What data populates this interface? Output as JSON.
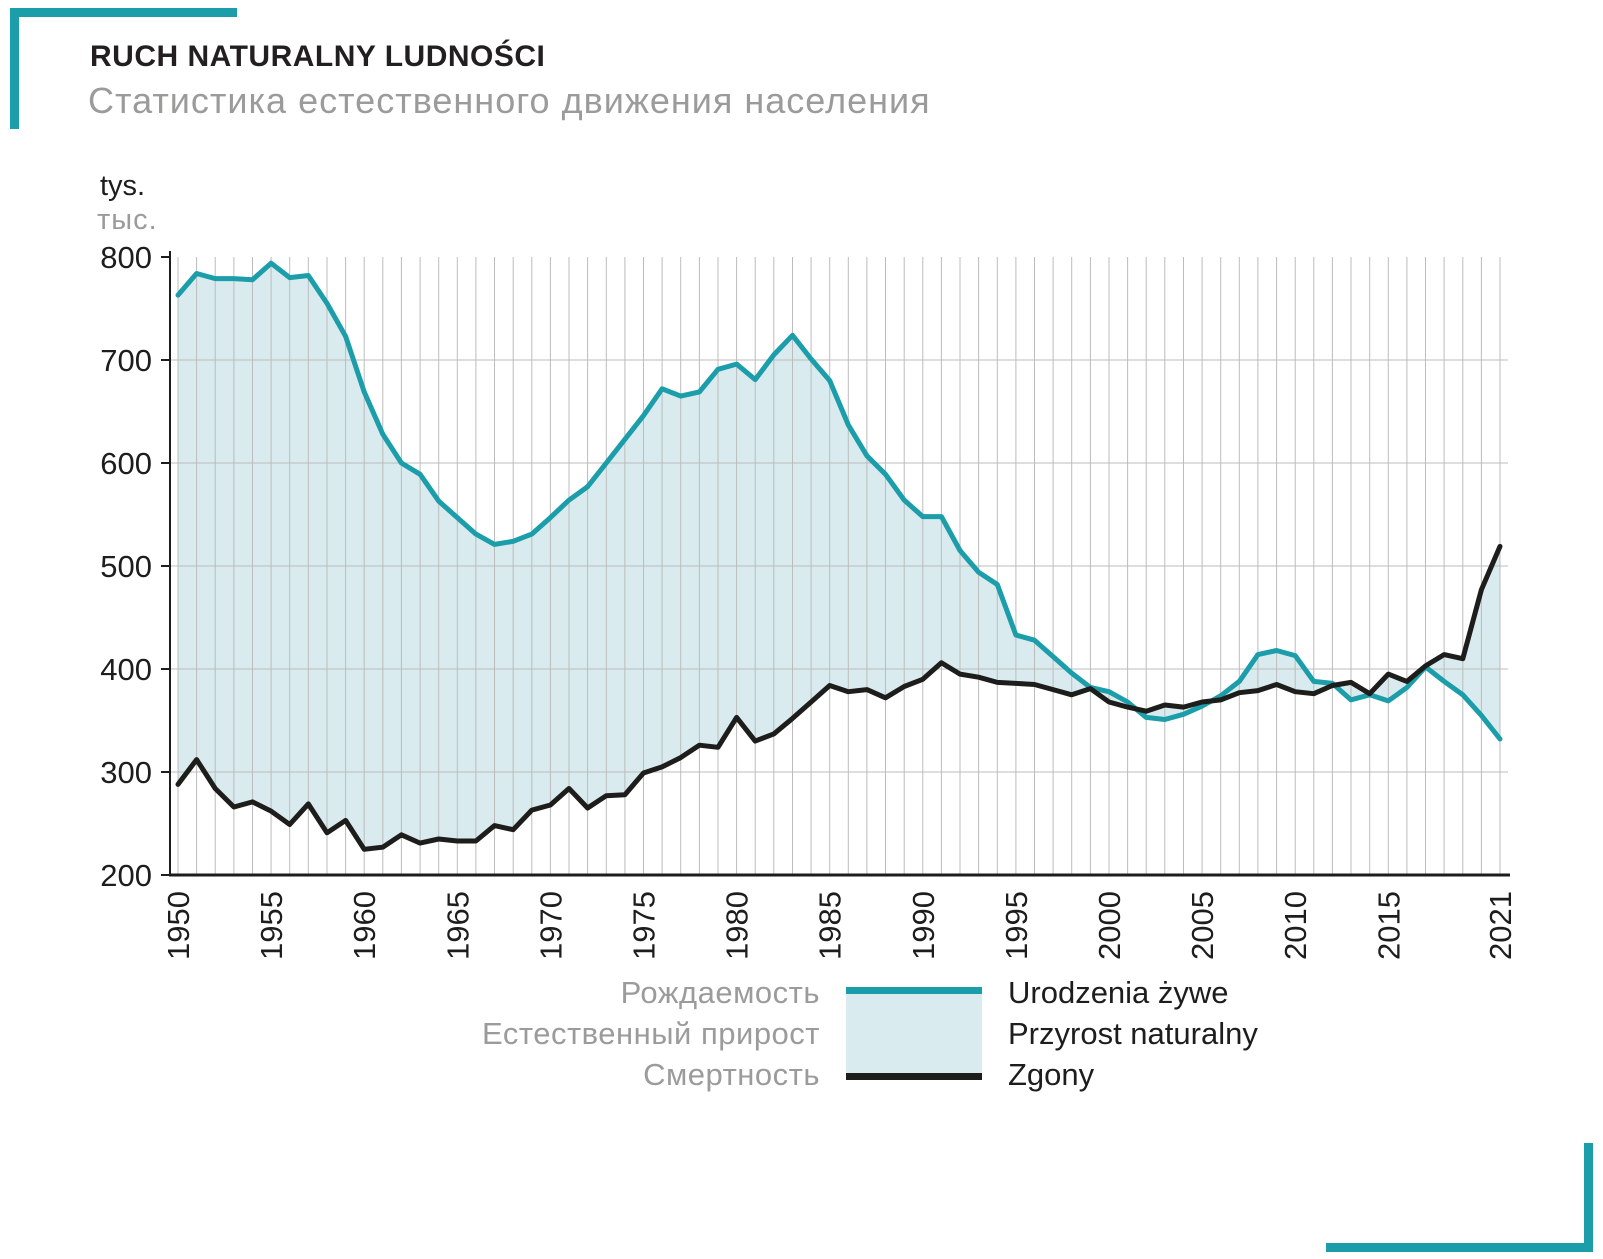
{
  "header": {
    "title": "RUCH NATURALNY LUDNOŚCI",
    "subtitle": "Статистика естественного движения населения"
  },
  "colors": {
    "accent_teal": "#1b9daa",
    "fill_teal": "#d9ebee",
    "line_black": "#1d1d1b",
    "grid_gray": "#bcbcbc",
    "text_gray": "#9b9b9a"
  },
  "legend": {
    "rows": [
      {
        "ru": "Рождаемость",
        "pl": "Urodzenia żywe"
      },
      {
        "ru": "Естественный прирост",
        "pl": "Przyrost naturalny"
      },
      {
        "ru": "Смертность",
        "pl": "Zgony"
      }
    ]
  },
  "chart_data": {
    "type": "line",
    "title": "RUCH NATURALNY LUDNOŚCI",
    "subtitle": "Статистика естественного движения населения",
    "unit": "tys.",
    "unit_ru": "тыс.",
    "ylim": [
      200,
      800
    ],
    "y_ticks": [
      200,
      300,
      400,
      500,
      600,
      700,
      800
    ],
    "x_ticks": [
      1950,
      1955,
      1960,
      1965,
      1970,
      1975,
      1980,
      1985,
      1990,
      1995,
      2000,
      2005,
      2010,
      2015,
      2021
    ],
    "x": [
      1950,
      1951,
      1952,
      1953,
      1954,
      1955,
      1956,
      1957,
      1958,
      1959,
      1960,
      1961,
      1962,
      1963,
      1964,
      1965,
      1966,
      1967,
      1968,
      1969,
      1970,
      1971,
      1972,
      1973,
      1974,
      1975,
      1976,
      1977,
      1978,
      1979,
      1980,
      1981,
      1982,
      1983,
      1984,
      1985,
      1986,
      1987,
      1988,
      1989,
      1990,
      1991,
      1992,
      1993,
      1994,
      1995,
      1996,
      1997,
      1998,
      1999,
      2000,
      2001,
      2002,
      2003,
      2004,
      2005,
      2006,
      2007,
      2008,
      2009,
      2010,
      2011,
      2012,
      2013,
      2014,
      2015,
      2016,
      2017,
      2018,
      2019,
      2020,
      2021
    ],
    "series": [
      {
        "name": "Urodzenia żywe",
        "name_ru": "Рождаемость",
        "color": "#1b9daa",
        "values": [
          763,
          784,
          779,
          779,
          778,
          794,
          780,
          782,
          755,
          723,
          669,
          628,
          600,
          589,
          563,
          547,
          531,
          521,
          524,
          531,
          547,
          564,
          577,
          600,
          623,
          646,
          672,
          665,
          669,
          691,
          696,
          681,
          705,
          724,
          701,
          680,
          637,
          607,
          589,
          564,
          548,
          548,
          515,
          494,
          482,
          433,
          428,
          412,
          396,
          382,
          378,
          368,
          353,
          351,
          356,
          364,
          374,
          388,
          414,
          418,
          413,
          388,
          386,
          370,
          375,
          369,
          382,
          402,
          388,
          375,
          355,
          332
        ]
      },
      {
        "name": "Zgony",
        "name_ru": "Смертность",
        "color": "#1d1d1b",
        "values": [
          288,
          312,
          284,
          266,
          271,
          262,
          249,
          269,
          241,
          253,
          225,
          227,
          239,
          231,
          235,
          233,
          233,
          248,
          244,
          263,
          268,
          284,
          265,
          277,
          278,
          299,
          305,
          314,
          326,
          324,
          353,
          330,
          337,
          352,
          368,
          384,
          378,
          380,
          372,
          383,
          390,
          406,
          395,
          392,
          387,
          386,
          385,
          380,
          375,
          381,
          368,
          363,
          359,
          365,
          363,
          368,
          370,
          377,
          379,
          385,
          378,
          376,
          384,
          387,
          376,
          395,
          388,
          403,
          414,
          410,
          477,
          519
        ]
      }
    ],
    "fill_between": {
      "name": "Przyrost naturalny",
      "name_ru": "Естественный прирост",
      "between": [
        "Urodzenia żywe",
        "Zgony"
      ],
      "color": "#d9ebee"
    },
    "legend_position": "bottom",
    "grid": "on"
  }
}
